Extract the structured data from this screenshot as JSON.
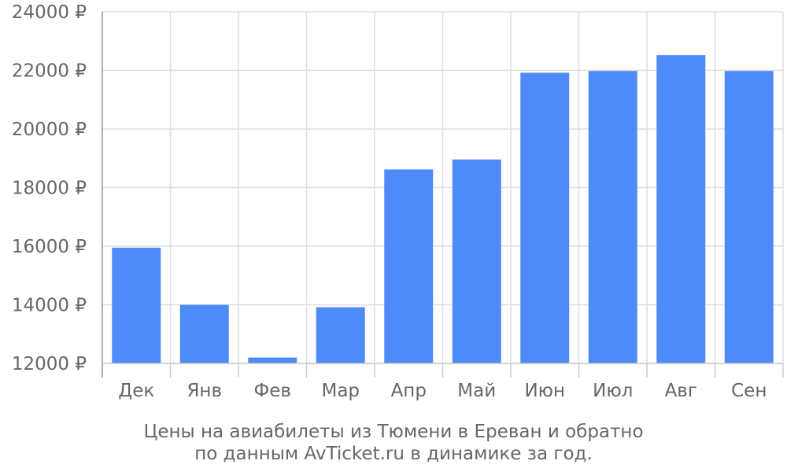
{
  "chart_data": {
    "type": "bar",
    "title": "",
    "xlabel": "",
    "ylabel": "",
    "categories": [
      "Дек",
      "Янв",
      "Фев",
      "Мар",
      "Апр",
      "Май",
      "Июн",
      "Июл",
      "Авг",
      "Сен"
    ],
    "values": [
      15950,
      14000,
      12200,
      13920,
      18620,
      18960,
      21920,
      21980,
      22520,
      21980
    ],
    "ylim": [
      12000,
      24000
    ],
    "y_ticks": [
      12000,
      14000,
      16000,
      18000,
      20000,
      22000,
      24000
    ],
    "y_tick_labels": [
      "12000 ₽",
      "14000 ₽",
      "16000 ₽",
      "18000 ₽",
      "20000 ₽",
      "22000 ₽",
      "24000 ₽"
    ],
    "grid": true,
    "bar_color": "#4f8af9",
    "caption_line1": "Цены на авиабилеты из Тюмени в Ереван и обратно",
    "caption_line2": "по данным AvTicket.ru в динамике за год."
  }
}
